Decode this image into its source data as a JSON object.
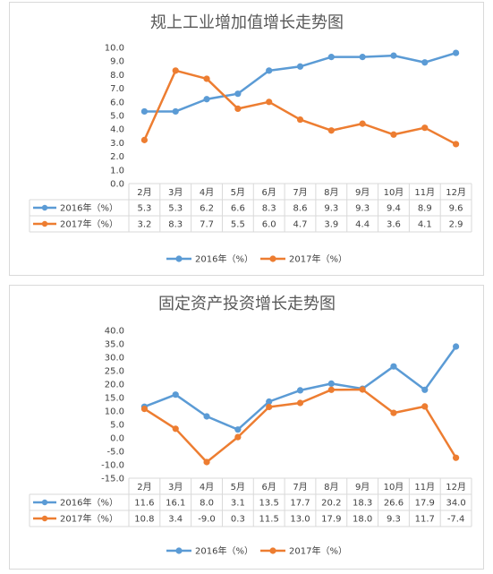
{
  "colors": {
    "series2016": "#5b9bd5",
    "series2017": "#ed7d31",
    "grid": "#d9d9d9",
    "text": "#404040"
  },
  "chart_data": [
    {
      "type": "line",
      "title": "规上工业增加值增长走势图",
      "categories": [
        "2月",
        "3月",
        "4月",
        "5月",
        "6月",
        "7月",
        "8月",
        "9月",
        "10月",
        "11月",
        "12月"
      ],
      "series": [
        {
          "name": "2016年（%）",
          "values": [
            5.3,
            5.3,
            6.2,
            6.6,
            8.3,
            8.6,
            9.3,
            9.3,
            9.4,
            8.9,
            9.6
          ]
        },
        {
          "name": "2017年（%）",
          "values": [
            3.2,
            8.3,
            7.7,
            5.5,
            6.0,
            4.7,
            3.9,
            4.4,
            3.6,
            4.1,
            2.9
          ]
        }
      ],
      "ylim": [
        0,
        10
      ],
      "yticks": [
        "0.0",
        "1.0",
        "2.0",
        "3.0",
        "4.0",
        "5.0",
        "6.0",
        "7.0",
        "8.0",
        "9.0",
        "10.0"
      ],
      "table": [
        [
          "5.3",
          "5.3",
          "6.2",
          "6.6",
          "8.3",
          "8.6",
          "9.3",
          "9.3",
          "9.4",
          "8.9",
          "9.6"
        ],
        [
          "3.2",
          "8.3",
          "7.7",
          "5.5",
          "6.0",
          "4.7",
          "3.9",
          "4.4",
          "3.6",
          "4.1",
          "2.9"
        ]
      ],
      "grid": false,
      "legend": "bottom"
    },
    {
      "type": "line",
      "title": "固定资产投资增长走势图",
      "categories": [
        "2月",
        "3月",
        "4月",
        "5月",
        "6月",
        "7月",
        "8月",
        "9月",
        "10月",
        "11月",
        "12月"
      ],
      "series": [
        {
          "name": "2016年（%）",
          "values": [
            11.6,
            16.1,
            8.0,
            3.1,
            13.5,
            17.7,
            20.2,
            18.3,
            26.6,
            17.9,
            34.0
          ]
        },
        {
          "name": "2017年（%）",
          "values": [
            10.8,
            3.4,
            -9.0,
            0.3,
            11.5,
            13.0,
            17.9,
            18.0,
            9.3,
            11.7,
            -7.4
          ]
        }
      ],
      "ylim": [
        -15,
        40
      ],
      "yticks": [
        "-15.0",
        "-10.0",
        "-5.0",
        "0.0",
        "5.0",
        "10.0",
        "15.0",
        "20.0",
        "25.0",
        "30.0",
        "35.0",
        "40.0"
      ],
      "table": [
        [
          "11.6",
          "16.1",
          "8.0",
          "3.1",
          "13.5",
          "17.7",
          "20.2",
          "18.3",
          "26.6",
          "17.9",
          "34.0"
        ],
        [
          "10.8",
          "3.4",
          "-9.0",
          "0.3",
          "11.5",
          "13.0",
          "17.9",
          "18.0",
          "9.3",
          "11.7",
          "-7.4"
        ]
      ],
      "grid": false,
      "legend": "bottom"
    }
  ]
}
